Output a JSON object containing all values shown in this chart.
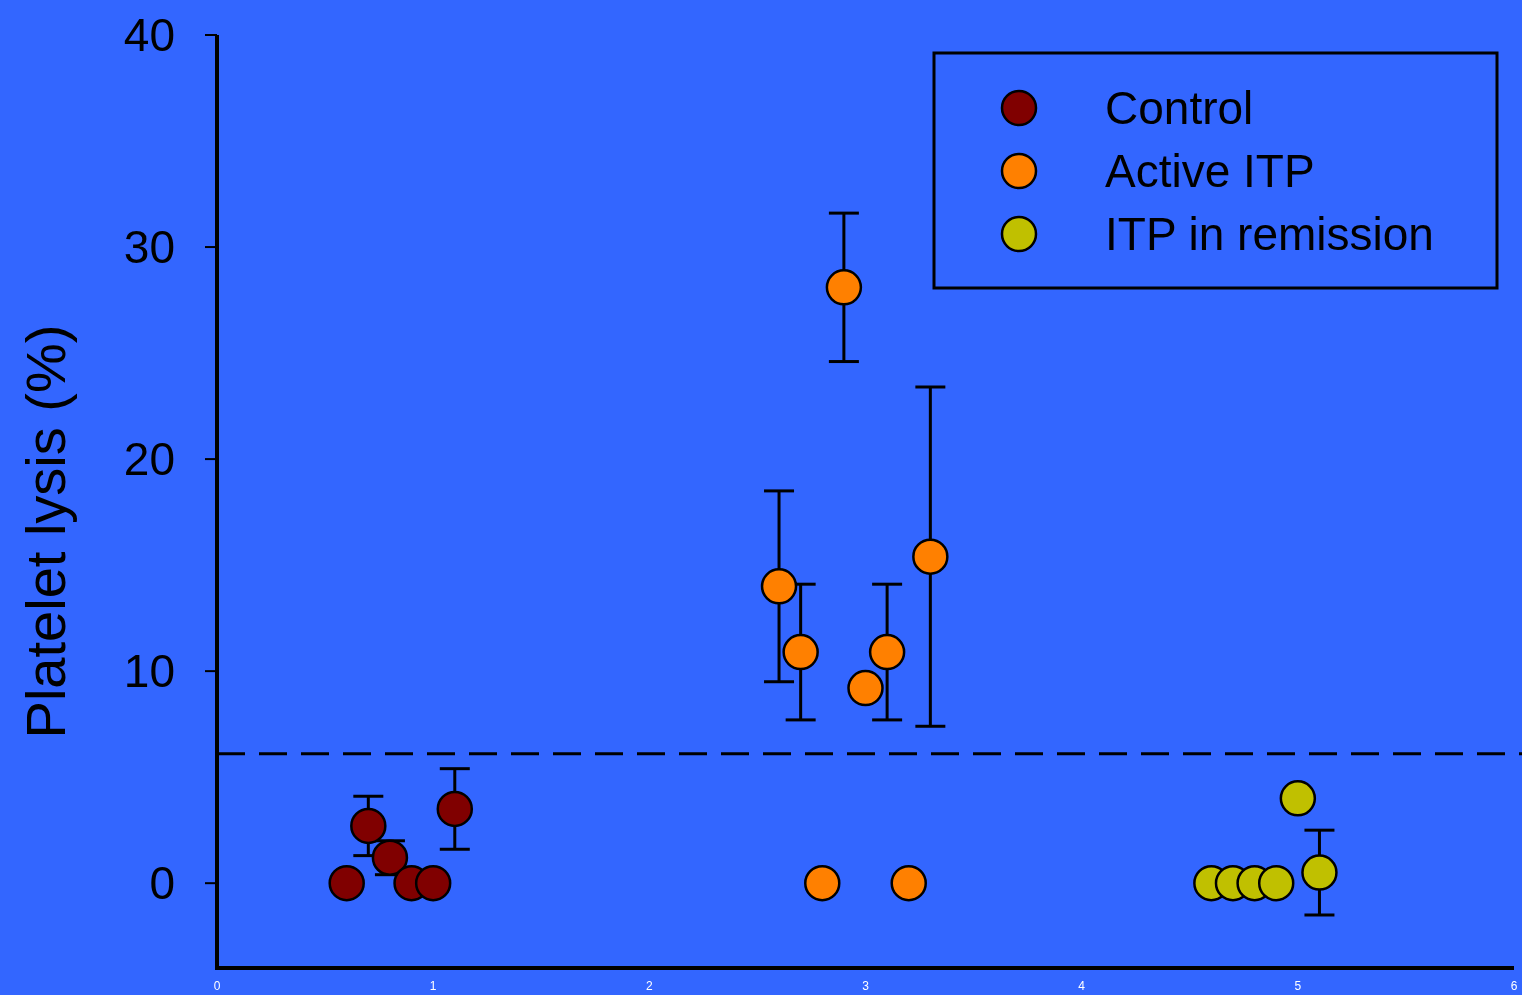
{
  "chart_data": {
    "type": "scatter",
    "ylabel": "Platelet lysis (%)",
    "xlim": [
      0,
      6
    ],
    "xticks": [
      0,
      1,
      2,
      3,
      4,
      5,
      6
    ],
    "ylim": [
      -4,
      40
    ],
    "yticks": [
      0,
      10,
      20,
      30,
      40
    ],
    "grid": false,
    "legend": "top right",
    "marker": "circle",
    "series": [
      {
        "name": "Control",
        "color": "#800000",
        "x": [
          0.6,
          0.7,
          0.8,
          0.9,
          1.0,
          1.1
        ],
        "values": [
          0,
          2.7,
          1.2,
          0,
          0,
          3.5
        ],
        "errors": [
          null,
          1.4,
          0.8,
          null,
          null,
          1.9
        ]
      },
      {
        "name": "Active ITP",
        "color": "#ff8000",
        "x": [
          2.6,
          2.7,
          2.8,
          2.9,
          3.0,
          3.1,
          3.2,
          3.3
        ],
        "values": [
          14.0,
          10.9,
          0,
          28.1,
          9.2,
          10.9,
          0,
          15.4
        ],
        "errors": [
          4.5,
          3.2,
          null,
          3.5,
          null,
          3.2,
          null,
          8.0
        ]
      },
      {
        "name": "ITP in remission",
        "color": "#c0c000",
        "x": [
          4.6,
          4.7,
          4.8,
          4.9,
          5.0,
          5.1
        ],
        "values": [
          0,
          0,
          0,
          0,
          4.0,
          0.5
        ],
        "errors": [
          null,
          null,
          null,
          null,
          null,
          2.0
        ]
      }
    ],
    "ref_lines": [
      {
        "axis": "y",
        "value": 6.1,
        "line_style": "dashed",
        "color": "#000000"
      }
    ]
  }
}
